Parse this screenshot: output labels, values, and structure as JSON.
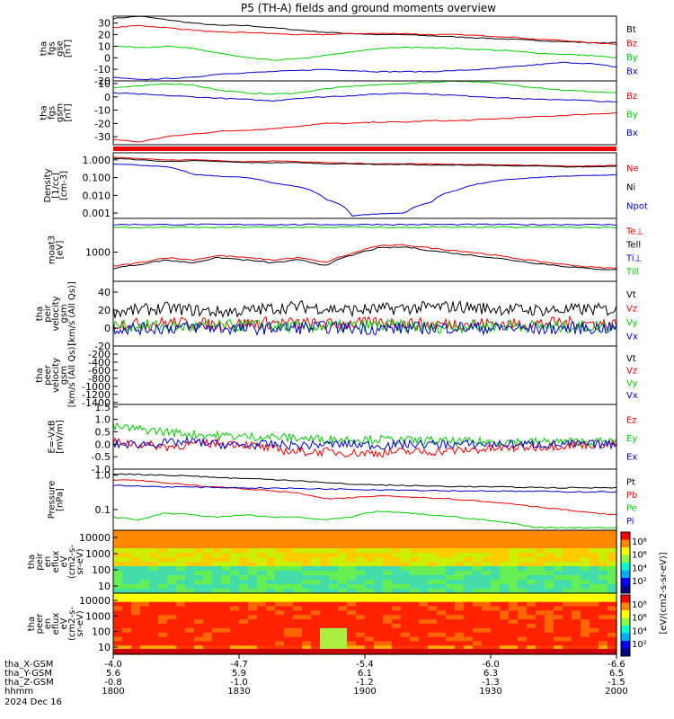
{
  "title": "P5 (TH-A) fields and ground moments overview",
  "colors": {
    "black": "#000000",
    "red": "#ee0000",
    "green": "#00cc00",
    "blue": "#0000cc",
    "axis": "#000000"
  },
  "chart_data": [
    {
      "id": "fgs_gse",
      "type": "line",
      "ylabel": [
        "tha",
        "fgs",
        "gse",
        "[nT]"
      ],
      "yticks": [
        "30",
        "20",
        "10",
        "0",
        "-10",
        "-20"
      ],
      "ylim": [
        -20,
        36
      ],
      "series": [
        {
          "name": "Bt",
          "color": "black",
          "values": [
            34,
            36,
            33,
            30,
            28,
            28,
            26,
            24,
            22,
            21,
            20,
            20,
            19,
            18,
            17,
            16,
            15,
            14,
            13,
            13
          ]
        },
        {
          "name": "Bz",
          "color": "red",
          "values": [
            26,
            28,
            26,
            24,
            22,
            22,
            21,
            20,
            20,
            21,
            21,
            21,
            20,
            20,
            19,
            18,
            16,
            15,
            13,
            12
          ]
        },
        {
          "name": "By",
          "color": "green",
          "values": [
            10,
            9,
            10,
            8,
            4,
            0,
            -2,
            -1,
            2,
            5,
            8,
            9,
            9,
            8,
            7,
            6,
            4,
            3,
            2,
            0
          ]
        },
        {
          "name": "Bx",
          "color": "blue",
          "values": [
            -17,
            -19,
            -18,
            -17,
            -14,
            -13,
            -12,
            -11,
            -10,
            -11,
            -12,
            -12,
            -12,
            -11,
            -10,
            -8,
            -6,
            -4,
            -5,
            -8
          ]
        }
      ]
    },
    {
      "id": "fgs_gsm",
      "type": "line",
      "ylabel": [
        "tha",
        "fgs",
        "gsm",
        "[nT]"
      ],
      "yticks": [
        "10",
        "0",
        "-10",
        "-20",
        "-30"
      ],
      "ylim": [
        -36,
        12
      ],
      "series": [
        {
          "name": "Bz",
          "color": "red",
          "values": [
            -32,
            -34,
            -30,
            -28,
            -26,
            -25,
            -24,
            -22,
            -20,
            -20,
            -19,
            -19,
            -18,
            -18,
            -17,
            -16,
            -15,
            -14,
            -13,
            -12
          ]
        },
        {
          "name": "By",
          "color": "green",
          "values": [
            7,
            8,
            10,
            9,
            5,
            3,
            2,
            3,
            6,
            8,
            9,
            10,
            11,
            12,
            11,
            9,
            7,
            5,
            4,
            3
          ]
        },
        {
          "name": "Bx",
          "color": "blue",
          "values": [
            3,
            2,
            1,
            0,
            -1,
            -2,
            -3,
            -1,
            0,
            1,
            2,
            3,
            2,
            1,
            0,
            -1,
            -2,
            -2,
            -3,
            -4
          ]
        }
      ]
    },
    {
      "id": "density",
      "type": "line",
      "log": true,
      "ylabel": [
        "Density",
        "[1/cc]",
        "[cm-3]"
      ],
      "yticks": [
        "1.000",
        "0.100",
        "0.010",
        "0.001"
      ],
      "ylim": [
        0.0005,
        2.5
      ],
      "series": [
        {
          "name": "Ne",
          "color": "red",
          "values": [
            1.4,
            1.2,
            1.0,
            1.0,
            0.9,
            0.8,
            0.85,
            0.8,
            0.7,
            0.65,
            0.6,
            0.6,
            0.6,
            0.55,
            0.55,
            0.5,
            0.5,
            0.45,
            0.45,
            0.5
          ]
        },
        {
          "name": "Ni",
          "color": "black",
          "values": [
            1.2,
            1.0,
            0.8,
            0.9,
            0.8,
            0.7,
            0.7,
            0.7,
            0.6,
            0.6,
            0.55,
            0.55,
            0.5,
            0.5,
            0.5,
            0.45,
            0.45,
            0.4,
            0.4,
            0.45
          ]
        },
        {
          "name": "Npot",
          "color": "blue",
          "values": [
            0.6,
            0.5,
            0.4,
            0.15,
            0.12,
            0.1,
            0.05,
            0.03,
            0.006,
            0.0007,
            0.0009,
            0.001,
            0.004,
            0.02,
            0.05,
            0.08,
            0.1,
            0.12,
            0.13,
            0.14
          ]
        }
      ]
    },
    {
      "id": "temperature",
      "type": "line",
      "log": true,
      "ylabel": [
        "moat3",
        "[eV]"
      ],
      "yticks": [
        "1000"
      ],
      "ylim": [
        150,
        9000
      ],
      "series": [
        {
          "name": "Te⊥",
          "color": "red",
          "values": [
            400,
            500,
            700,
            600,
            800,
            700,
            600,
            700,
            500,
            900,
            1500,
            1600,
            1300,
            1100,
            900,
            700,
            550,
            450,
            380,
            350
          ]
        },
        {
          "name": "Tell",
          "color": "black",
          "values": [
            350,
            450,
            600,
            500,
            700,
            600,
            500,
            600,
            420,
            800,
            1300,
            1400,
            1100,
            900,
            750,
            600,
            480,
            400,
            340,
            320
          ]
        },
        {
          "name": "Ti⊥",
          "color": "blue",
          "values": [
            6000,
            6100,
            6000,
            6050,
            6000,
            6100,
            6000,
            6000,
            6050,
            6000,
            6100,
            6000,
            6050,
            6000,
            6100,
            6050,
            6000,
            6050,
            6000,
            6000
          ]
        },
        {
          "name": "Till",
          "color": "green",
          "values": [
            5000,
            4900,
            5100,
            5000,
            4950,
            5100,
            5000,
            5050,
            5000,
            5100,
            5000,
            4950,
            5050,
            5000,
            5100,
            5000,
            5050,
            5000,
            5000,
            5050
          ]
        }
      ]
    },
    {
      "id": "peir_velocity",
      "type": "line",
      "noisy": true,
      "ylabel": [
        "tha",
        "peir",
        "velocity",
        "gsm",
        "[km/s (All Qs)]"
      ],
      "yticks": [
        "40",
        "20",
        "0",
        "-20"
      ],
      "ylim": [
        -20,
        52
      ],
      "series": [
        {
          "name": "Vt",
          "color": "black",
          "values": [
            18,
            20,
            22,
            20,
            18,
            19,
            22,
            24,
            22,
            20,
            21,
            22,
            23,
            24,
            22,
            21,
            20,
            20,
            21,
            20
          ]
        },
        {
          "name": "Vz",
          "color": "red",
          "values": [
            5,
            4,
            6,
            5,
            4,
            5,
            6,
            5,
            4,
            5,
            6,
            5,
            4,
            5,
            5,
            4,
            5,
            6,
            5,
            4
          ]
        },
        {
          "name": "Vy",
          "color": "green",
          "values": [
            2,
            3,
            2,
            1,
            2,
            3,
            2,
            1,
            2,
            2,
            3,
            2,
            1,
            2,
            2,
            3,
            2,
            1,
            2,
            2
          ]
        },
        {
          "name": "Vx",
          "color": "blue",
          "values": [
            0,
            -1,
            0,
            1,
            0,
            -1,
            0,
            0,
            1,
            0,
            -1,
            0,
            0,
            1,
            0,
            0,
            -1,
            0,
            0,
            0
          ]
        }
      ]
    },
    {
      "id": "peer_velocity",
      "type": "line",
      "ylabel": [
        "tha",
        "peer",
        "velocity",
        "gsm",
        "[km/s (All Qs)]"
      ],
      "yticks": [
        "-200",
        "-400",
        "-600",
        "-800",
        "-1000",
        "-1200",
        "-1400"
      ],
      "ylim": [
        -1450,
        0
      ],
      "series": [
        {
          "name": "Vt",
          "color": "black",
          "values": []
        },
        {
          "name": "Vz",
          "color": "red",
          "values": []
        },
        {
          "name": "Vy",
          "color": "green",
          "values": []
        },
        {
          "name": "Vx",
          "color": "blue",
          "values": []
        }
      ]
    },
    {
      "id": "efield",
      "type": "line",
      "noisy": true,
      "ylabel": [
        "E=-VxB",
        "[mV/m]"
      ],
      "yticks": [
        "1.5",
        "1.0",
        "0.5",
        "0.0",
        "-0.5",
        "-1.0"
      ],
      "ylim": [
        -1.0,
        1.6
      ],
      "series": [
        {
          "name": "Ez",
          "color": "red",
          "values": [
            0.1,
            0.0,
            -0.1,
            0.0,
            0.05,
            0.0,
            -0.2,
            -0.3,
            -0.3,
            -0.35,
            -0.35,
            -0.3,
            -0.3,
            -0.25,
            -0.2,
            -0.15,
            -0.1,
            -0.05,
            0.0,
            0.05
          ]
        },
        {
          "name": "Ey",
          "color": "green",
          "values": [
            0.7,
            0.6,
            0.5,
            0.4,
            0.35,
            0.3,
            0.3,
            0.25,
            0.2,
            0.2,
            0.2,
            0.15,
            0.15,
            0.1,
            0.1,
            0.1,
            0.1,
            0.1,
            0.1,
            0.1
          ]
        },
        {
          "name": "Ex",
          "color": "blue",
          "values": [
            0.0,
            0.0,
            0.05,
            0.1,
            0.0,
            -0.05,
            0.0,
            -0.05,
            0.0,
            0.0,
            -0.05,
            0.0,
            0.0,
            0.0,
            0.0,
            0.0,
            0.0,
            0.0,
            0.0,
            0.0
          ]
        }
      ]
    },
    {
      "id": "pressure",
      "type": "line",
      "log": true,
      "ylabel": [
        "Pressure",
        "[nPa]"
      ],
      "yticks": [
        "1.0",
        "0.1"
      ],
      "ylim": [
        0.025,
        1.5
      ],
      "series": [
        {
          "name": "Pt",
          "color": "black",
          "values": [
            1.1,
            1.05,
            1.0,
            0.95,
            0.85,
            0.8,
            0.75,
            0.7,
            0.6,
            0.55,
            0.52,
            0.5,
            0.48,
            0.47,
            0.46,
            0.45,
            0.44,
            0.43,
            0.43,
            0.44
          ]
        },
        {
          "name": "Pb",
          "color": "red",
          "values": [
            0.75,
            0.7,
            0.6,
            0.5,
            0.45,
            0.4,
            0.35,
            0.3,
            0.2,
            0.22,
            0.25,
            0.24,
            0.22,
            0.2,
            0.17,
            0.15,
            0.12,
            0.1,
            0.08,
            0.07
          ]
        },
        {
          "name": "Pe",
          "color": "green",
          "values": [
            0.06,
            0.05,
            0.08,
            0.07,
            0.06,
            0.07,
            0.06,
            0.06,
            0.05,
            0.06,
            0.09,
            0.08,
            0.07,
            0.06,
            0.05,
            0.04,
            0.03,
            0.03,
            0.03,
            0.03
          ]
        },
        {
          "name": "Pi",
          "color": "blue",
          "values": [
            0.5,
            0.48,
            0.46,
            0.45,
            0.44,
            0.43,
            0.42,
            0.41,
            0.4,
            0.39,
            0.38,
            0.37,
            0.36,
            0.35,
            0.35,
            0.34,
            0.34,
            0.33,
            0.33,
            0.33
          ]
        }
      ]
    },
    {
      "id": "peir_spec",
      "type": "heatmap",
      "ylabel": [
        "tha",
        "peir",
        "en",
        "eflux",
        "eV",
        "(cm2-s-",
        "sr-eV)"
      ],
      "yticks": [
        "10000",
        "1000",
        "100",
        "10"
      ]
    },
    {
      "id": "peer_spec",
      "type": "heatmap",
      "ylabel": [
        "tha",
        "peer",
        "en",
        "eflux",
        "eV",
        "(cm2-s-",
        "sr-eV)"
      ],
      "yticks": [
        "10000",
        "1000",
        "100",
        "10"
      ]
    }
  ],
  "colorbar": {
    "label": "[eV/(cm2-s-sr-eV)]",
    "upper_ticks": [
      "10⁸",
      "10⁶",
      "10⁴",
      "10²"
    ],
    "lower_ticks": [
      "10⁸",
      "10⁶",
      "10⁴",
      "10²"
    ]
  },
  "xaxis": {
    "rows": [
      {
        "label": "tha_X-GSM",
        "values": [
          "-4.0",
          "-4.7",
          "-5.4",
          "-6.0",
          "-6.6"
        ]
      },
      {
        "label": "tha_Y-GSM",
        "values": [
          "5.6",
          "5.9",
          "6.1",
          "6.3",
          "6.5"
        ]
      },
      {
        "label": "tha_Z-GSM",
        "values": [
          "-0.8",
          "-1.0",
          "-1.2",
          "-1.3",
          "-1.5"
        ]
      },
      {
        "label": "hhmm",
        "values": [
          "1800",
          "1830",
          "1900",
          "1930",
          "2000"
        ]
      }
    ],
    "date": "2024 Dec 16"
  }
}
